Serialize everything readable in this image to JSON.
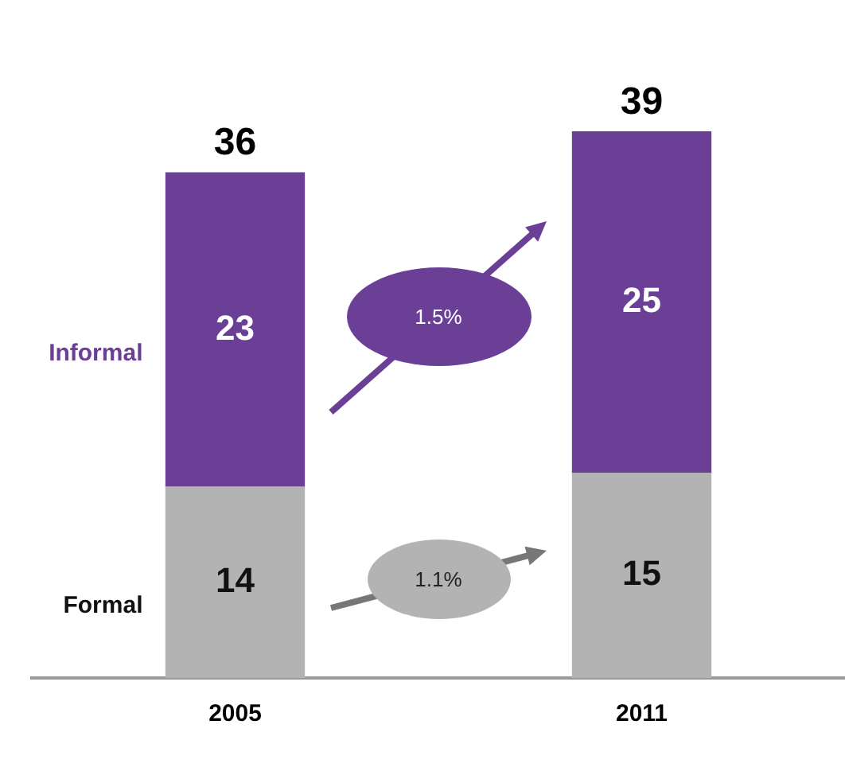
{
  "chart_data": {
    "type": "bar",
    "stacked": true,
    "categories": [
      "2005",
      "2011"
    ],
    "series": [
      {
        "name": "Formal",
        "color": "#b3b3b3",
        "values": [
          14,
          15
        ]
      },
      {
        "name": "Informal",
        "color": "#6b3f96",
        "values": [
          23,
          25
        ]
      }
    ],
    "data_labels": true,
    "totals": [
      "36",
      "39"
    ],
    "annotations": [
      "1.5%",
      "1.1%"
    ],
    "legend": false,
    "grid": false
  }
}
